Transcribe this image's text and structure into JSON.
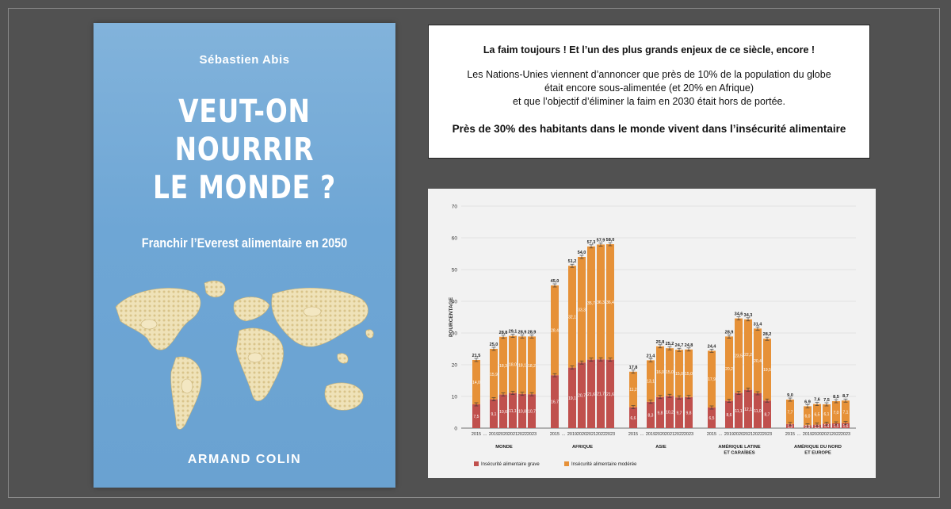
{
  "book": {
    "author": "Sébastien Abis",
    "title_lines": [
      "VEUT-ON",
      "NOURRIR",
      "LE MONDE ?"
    ],
    "subtitle": "Franchir l’Everest alimentaire en 2050",
    "publisher": "ARMAND COLIN"
  },
  "textbox": {
    "headline": "La faim toujours ! Et l’un des plus grands enjeux de ce siècle, encore !",
    "body_lines": [
      "Les Nations-Unies viennent d’annoncer que près de 10% de la population du globe",
      "était encore sous-alimentée (et 20% en Afrique)",
      "et que l’objectif d’éliminer la faim en 2030 était hors de portée."
    ],
    "emphasis": "Près de 30% des habitants dans le monde vivent dans l’insécurité alimentaire"
  },
  "colors": {
    "background": "#515151",
    "cover_blue": "#6ea6d5",
    "grave": "#c0504d",
    "moderee": "#e69138"
  },
  "chart_data": {
    "type": "bar",
    "stacked": true,
    "ylabel": "POURCENTAGE",
    "ylim": [
      0,
      70
    ],
    "yticks": [
      0,
      10,
      20,
      30,
      40,
      50,
      60,
      70
    ],
    "grid": true,
    "legend_position": "bottom-left",
    "x_tick_labels": [
      "2015",
      "…",
      "2019",
      "2020",
      "2021",
      "2022",
      "2023"
    ],
    "series": [
      {
        "name": "Insécurité alimentaire grave",
        "key": "grave"
      },
      {
        "name": "Insécurité alimentaire modérée",
        "key": "moderee"
      }
    ],
    "groups": [
      {
        "label": [
          "MONDE"
        ],
        "grave": [
          7.5,
          9.1,
          10.6,
          11.1,
          10.8,
          10.7
        ],
        "moderee": [
          14.0,
          15.9,
          18.3,
          18.0,
          18.1,
          18.2
        ],
        "total": [
          21.5,
          25.0,
          28.8,
          29.1,
          28.9,
          28.9
        ]
      },
      {
        "label": [
          "AFRIQUE"
        ],
        "grave": [
          16.7,
          19.1,
          20.7,
          21.6,
          21.7,
          21.6
        ],
        "moderee": [
          28.4,
          32.1,
          33.3,
          35.7,
          36.3,
          36.4
        ],
        "total": [
          45.0,
          51.2,
          54.0,
          57.3,
          57.9,
          58.0
        ]
      },
      {
        "label": [
          "ASIE"
        ],
        "grave": [
          6.6,
          8.3,
          9.8,
          10.2,
          9.7,
          9.8
        ],
        "moderee": [
          11.2,
          13.1,
          16.0,
          15.0,
          15.0,
          15.0
        ],
        "total": [
          17.8,
          21.4,
          25.8,
          25.2,
          24.7,
          24.8
        ]
      },
      {
        "label": [
          "AMÉRIQUE LATINE",
          "ET CARAÏBES"
        ],
        "grave": [
          6.5,
          8.6,
          11.1,
          12.1,
          11.0,
          8.7
        ],
        "moderee": [
          17.9,
          20.2,
          23.5,
          22.2,
          20.4,
          19.5
        ],
        "total": [
          24.4,
          28.9,
          34.6,
          34.3,
          31.4,
          28.2
        ]
      },
      {
        "label": [
          "AMÉRIQUE DU NORD",
          "ET EUROPE"
        ],
        "grave": [
          1.3,
          0.9,
          1.1,
          1.4,
          1.5,
          1.6
        ],
        "moderee": [
          7.7,
          6.0,
          6.5,
          6.1,
          7.0,
          7.1
        ],
        "total": [
          9.0,
          6.9,
          7.6,
          7.5,
          8.5,
          8.7
        ]
      }
    ]
  }
}
